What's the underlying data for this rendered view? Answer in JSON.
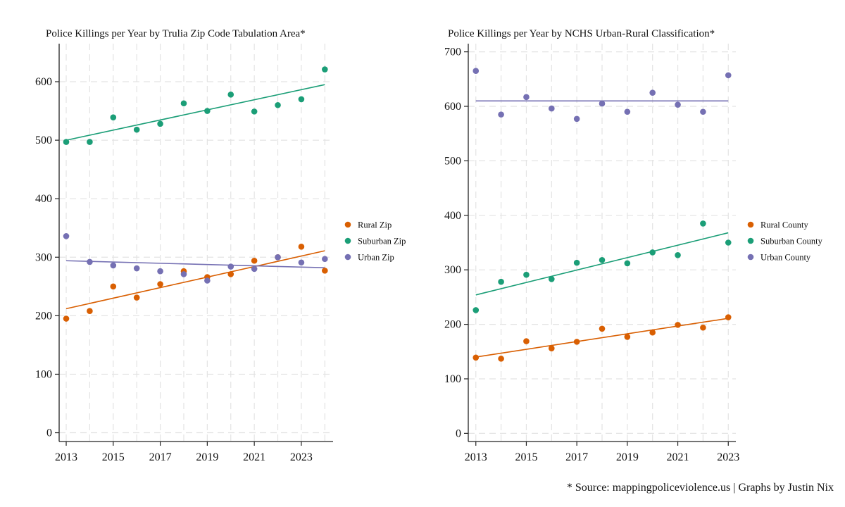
{
  "footer_note": "* Source: mappingpoliceviolence.us | Graphs by Justin Nix",
  "colors": {
    "rural": "#d95f02",
    "suburban": "#1b9e77",
    "urban": "#7570b3",
    "grid": "#e3e3e3",
    "axis": "#222222"
  },
  "chart_data": [
    {
      "type": "scatter",
      "title": "Police Killings per Year by Trulia Zip Code Tabulation Area*",
      "xlabel": "",
      "ylabel": "",
      "xlim": [
        2012.7,
        2024.35
      ],
      "ylim": [
        -15,
        665
      ],
      "xticks": [
        2013,
        2015,
        2017,
        2019,
        2021,
        2023
      ],
      "xgrid": [
        2013,
        2014,
        2015,
        2016,
        2017,
        2018,
        2019,
        2020,
        2021,
        2022,
        2023,
        2024
      ],
      "yticks": [
        0,
        100,
        200,
        300,
        400,
        500,
        600
      ],
      "grid": true,
      "legend_position": "right",
      "series": [
        {
          "name": "Rural Zip",
          "color_key": "rural",
          "x": [
            2013,
            2014,
            2015,
            2016,
            2017,
            2018,
            2019,
            2020,
            2021,
            2022,
            2023,
            2024
          ],
          "values": [
            195,
            208,
            250,
            231,
            254,
            276,
            266,
            271,
            294,
            300,
            318,
            277
          ],
          "fit": [
            212,
            311
          ]
        },
        {
          "name": "Suburban Zip",
          "color_key": "suburban",
          "x": [
            2013,
            2014,
            2015,
            2016,
            2017,
            2018,
            2019,
            2020,
            2021,
            2022,
            2023,
            2024
          ],
          "values": [
            497,
            497,
            539,
            518,
            528,
            563,
            550,
            578,
            549,
            560,
            570,
            621
          ],
          "fit": [
            500,
            595
          ]
        },
        {
          "name": "Urban Zip",
          "color_key": "urban",
          "x": [
            2013,
            2014,
            2015,
            2016,
            2017,
            2018,
            2019,
            2020,
            2021,
            2022,
            2023,
            2024
          ],
          "values": [
            336,
            292,
            286,
            281,
            276,
            271,
            260,
            284,
            280,
            300,
            291,
            297
          ],
          "fit": [
            294,
            282
          ]
        }
      ]
    },
    {
      "type": "scatter",
      "title": "Police Killings per Year by NCHS Urban-Rural Classification*",
      "xlabel": "",
      "ylabel": "",
      "xlim": [
        2012.7,
        2023.3
      ],
      "ylim": [
        -15,
        715
      ],
      "xticks": [
        2013,
        2015,
        2017,
        2019,
        2021,
        2023
      ],
      "xgrid": [
        2013,
        2014,
        2015,
        2016,
        2017,
        2018,
        2019,
        2020,
        2021,
        2022,
        2023
      ],
      "yticks": [
        0,
        100,
        200,
        300,
        400,
        500,
        600,
        700
      ],
      "grid": true,
      "legend_position": "right",
      "series": [
        {
          "name": "Rural County",
          "color_key": "rural",
          "x": [
            2013,
            2014,
            2015,
            2016,
            2017,
            2018,
            2019,
            2020,
            2021,
            2022,
            2023
          ],
          "values": [
            139,
            137,
            169,
            156,
            168,
            192,
            177,
            185,
            199,
            194,
            213
          ],
          "fit": [
            140,
            211
          ]
        },
        {
          "name": "Suburban County",
          "color_key": "suburban",
          "x": [
            2013,
            2014,
            2015,
            2016,
            2017,
            2018,
            2019,
            2020,
            2021,
            2022,
            2023
          ],
          "values": [
            226,
            278,
            291,
            283,
            313,
            318,
            312,
            332,
            327,
            385,
            350
          ],
          "fit": [
            254,
            368
          ]
        },
        {
          "name": "Urban County",
          "color_key": "urban",
          "x": [
            2013,
            2014,
            2015,
            2016,
            2017,
            2018,
            2019,
            2020,
            2021,
            2022,
            2023
          ],
          "values": [
            665,
            585,
            617,
            596,
            577,
            605,
            590,
            625,
            603,
            590,
            657
          ],
          "fit": [
            610,
            610
          ]
        }
      ]
    }
  ]
}
